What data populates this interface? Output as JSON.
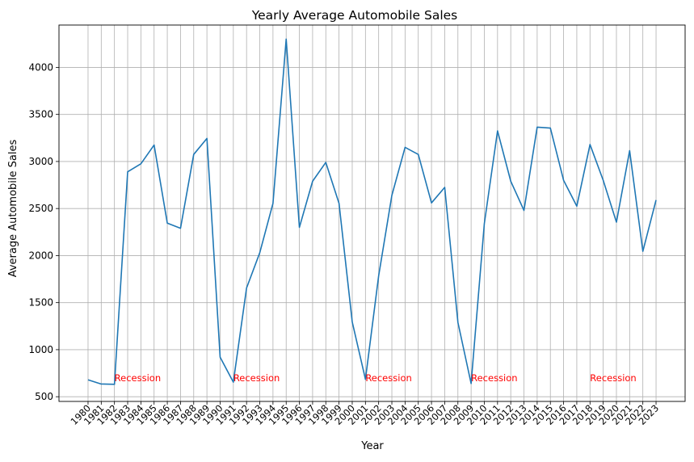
{
  "chart_data": {
    "type": "line",
    "title": "Yearly Average Automobile Sales",
    "xlabel": "Year",
    "ylabel": "Average Automobile Sales",
    "ylim": [
      450,
      4450
    ],
    "yticks": [
      500,
      1000,
      1500,
      2000,
      2500,
      3000,
      3500,
      4000
    ],
    "grid": true,
    "x": [
      1980,
      1981,
      1982,
      1983,
      1984,
      1985,
      1986,
      1987,
      1988,
      1989,
      1990,
      1991,
      1992,
      1993,
      1994,
      1995,
      1996,
      1997,
      1998,
      1999,
      2000,
      2001,
      2002,
      2003,
      2004,
      2005,
      2006,
      2007,
      2008,
      2009,
      2010,
      2011,
      2012,
      2013,
      2014,
      2015,
      2016,
      2017,
      2018,
      2019,
      2020,
      2021,
      2022,
      2023
    ],
    "series": [
      {
        "color": "#1f77b4",
        "values": [
          680,
          635,
          632,
          2890,
          2975,
          3175,
          2345,
          2290,
          3075,
          3245,
          920,
          655,
          1655,
          2030,
          2555,
          4300,
          2300,
          2790,
          2990,
          2555,
          1295,
          685,
          1785,
          2640,
          3150,
          3075,
          2560,
          2725,
          1290,
          640,
          2340,
          3325,
          2790,
          2480,
          3365,
          3355,
          2800,
          2525,
          3180,
          2800,
          2355,
          3115,
          2045,
          2590
        ]
      }
    ],
    "annotations": [
      {
        "x": 1982,
        "y": 700,
        "text": "Recession",
        "color": "#ff0000"
      },
      {
        "x": 1991,
        "y": 700,
        "text": "Recession",
        "color": "#ff0000"
      },
      {
        "x": 2001,
        "y": 700,
        "text": "Recession",
        "color": "#ff0000"
      },
      {
        "x": 2009,
        "y": 700,
        "text": "Recession",
        "color": "#ff0000"
      },
      {
        "x": 2018,
        "y": 700,
        "text": "Recession",
        "color": "#ff0000"
      }
    ]
  }
}
